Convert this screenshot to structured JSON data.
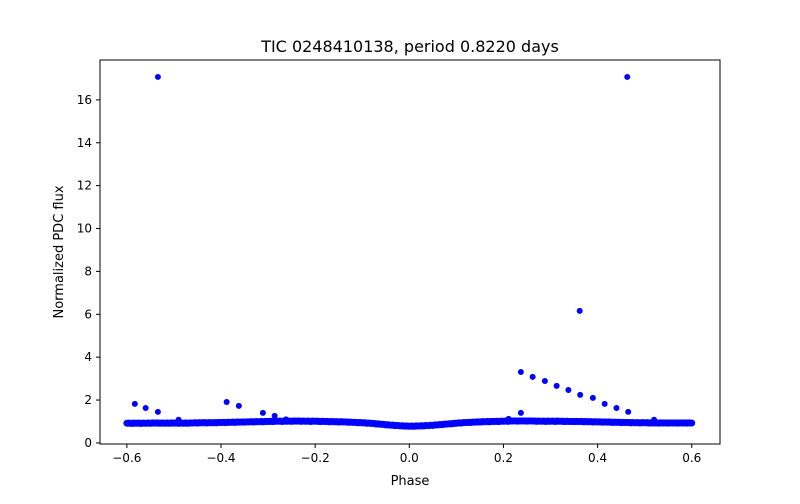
{
  "chart_data": {
    "type": "scatter",
    "title": "TIC 0248410138, period 0.8220 days",
    "xlabel": "Phase",
    "ylabel": "Normalized PDC flux",
    "xlim": [
      -0.657,
      0.66
    ],
    "ylim": [
      -0.05,
      17.86
    ],
    "xticks": [
      -0.6,
      -0.4,
      -0.2,
      0.0,
      0.2,
      0.4,
      0.6
    ],
    "xtick_labels": [
      "−0.6",
      "−0.4",
      "−0.2",
      "0.0",
      "0.2",
      "0.4",
      "0.6"
    ],
    "yticks": [
      0,
      2,
      4,
      6,
      8,
      10,
      12,
      14,
      16
    ],
    "ytick_labels": [
      "0",
      "2",
      "4",
      "6",
      "8",
      "10",
      "12",
      "14",
      "16"
    ],
    "grid": false,
    "marker_color": "#0000ff",
    "baseline": {
      "x": [
        -0.6,
        -0.58,
        -0.56,
        -0.54,
        -0.52,
        -0.5,
        -0.48,
        -0.46,
        -0.44,
        -0.42,
        -0.4,
        -0.38,
        -0.36,
        -0.34,
        -0.32,
        -0.3,
        -0.28,
        -0.26,
        -0.24,
        -0.22,
        -0.2,
        -0.18,
        -0.16,
        -0.14,
        -0.12,
        -0.1,
        -0.08,
        -0.06,
        -0.04,
        -0.02,
        0.0,
        0.02,
        0.04,
        0.06,
        0.08,
        0.1,
        0.12,
        0.14,
        0.16,
        0.18,
        0.2,
        0.22,
        0.24,
        0.26,
        0.28,
        0.3,
        0.32,
        0.34,
        0.36,
        0.38,
        0.4,
        0.42,
        0.44,
        0.46,
        0.48,
        0.5,
        0.52,
        0.54,
        0.56,
        0.58,
        0.6
      ],
      "y": [
        0.92,
        0.92,
        0.92,
        0.93,
        0.92,
        0.93,
        0.92,
        0.93,
        0.94,
        0.94,
        0.95,
        0.96,
        0.97,
        0.98,
        0.99,
        1.0,
        1.01,
        1.01,
        1.02,
        1.01,
        1.01,
        1.0,
        0.99,
        0.98,
        0.96,
        0.94,
        0.91,
        0.87,
        0.83,
        0.8,
        0.78,
        0.79,
        0.81,
        0.84,
        0.88,
        0.92,
        0.95,
        0.97,
        0.99,
        1.0,
        1.01,
        1.02,
        1.02,
        1.02,
        1.01,
        1.01,
        1.01,
        1.0,
        1.0,
        0.99,
        0.98,
        0.97,
        0.96,
        0.95,
        0.94,
        0.94,
        0.93,
        0.93,
        0.93,
        0.93,
        0.93
      ]
    },
    "outliers": {
      "x": [
        -0.583,
        -0.56,
        -0.534,
        -0.534,
        -0.388,
        -0.362,
        -0.311,
        -0.286,
        -0.262,
        -0.49,
        0.211,
        0.237,
        0.237,
        0.262,
        0.288,
        0.313,
        0.338,
        0.363,
        0.362,
        0.39,
        0.415,
        0.44,
        0.465,
        0.463,
        0.52
      ],
      "y": [
        1.82,
        1.63,
        1.45,
        17.07,
        1.91,
        1.73,
        1.4,
        1.26,
        1.1,
        1.08,
        1.12,
        1.4,
        3.31,
        3.08,
        2.89,
        2.66,
        2.47,
        2.24,
        6.16,
        2.1,
        1.82,
        1.63,
        1.45,
        17.07,
        1.08
      ]
    }
  }
}
